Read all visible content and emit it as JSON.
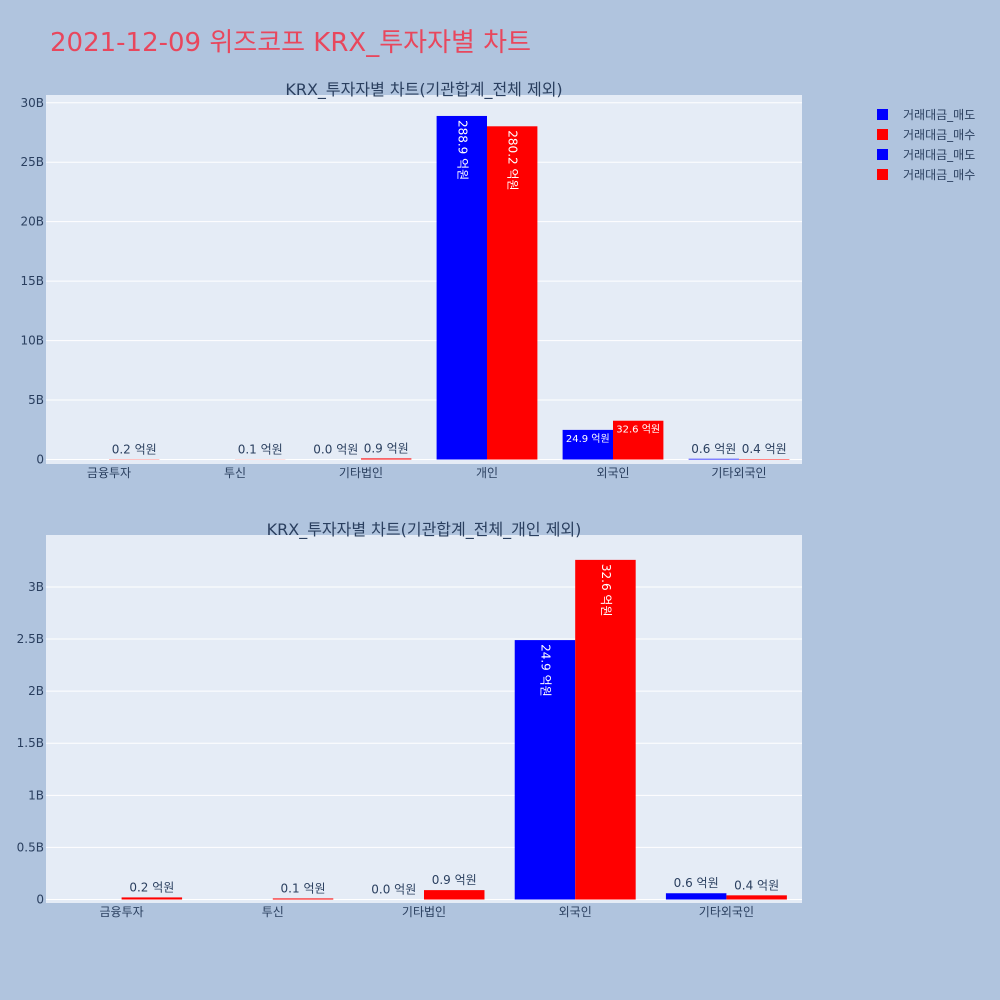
{
  "page_title": "2021-12-09 위즈코프 KRX_투자자별 차트",
  "colors": {
    "sell": "#0000ff",
    "buy": "#ff0000",
    "plot_bg": "#e5ecf6",
    "page_bg": "#b0c4de"
  },
  "legend": [
    {
      "label": "거래대금_매도",
      "color": "#0000ff"
    },
    {
      "label": "거래대금_매수",
      "color": "#ff0000"
    },
    {
      "label": "거래대금_매도",
      "color": "#0000ff"
    },
    {
      "label": "거래대금_매수",
      "color": "#ff0000"
    }
  ],
  "chart_data": [
    {
      "type": "bar",
      "title": "KRX_투자자별 차트(기관합계_전체 제외)",
      "categories": [
        "금융투자",
        "투신",
        "기타법인",
        "개인",
        "외국인",
        "기타외국인"
      ],
      "series": [
        {
          "name": "거래대금_매도",
          "values": [
            0,
            0,
            0,
            28890000000,
            2490000000,
            60000000
          ],
          "labels": [
            "",
            "",
            "0.0 억원",
            "288.9 억원",
            "24.9 억원",
            "0.6 억원"
          ]
        },
        {
          "name": "거래대금_매수",
          "values": [
            20000000,
            10000000,
            90000000,
            28020000000,
            3260000000,
            40000000
          ],
          "labels": [
            "0.2 억원",
            "0.1 억원",
            "0.9 억원",
            "280.2 억원",
            "32.6 억원",
            "0.4 억원"
          ]
        }
      ],
      "yticks": [
        0,
        5000000000,
        10000000000,
        15000000000,
        20000000000,
        25000000000,
        30000000000
      ],
      "ytick_labels": [
        "0",
        "5B",
        "10B",
        "15B",
        "20B",
        "25B",
        "30B"
      ],
      "ylim": [
        0,
        30400000000
      ],
      "grid": true
    },
    {
      "type": "bar",
      "title": "KRX_투자자별 차트(기관합계_전체_개인 제외)",
      "categories": [
        "금융투자",
        "투신",
        "기타법인",
        "외국인",
        "기타외국인"
      ],
      "series": [
        {
          "name": "거래대금_매도",
          "values": [
            0,
            0,
            0,
            2490000000,
            60000000
          ],
          "labels": [
            "",
            "",
            "0.0 억원",
            "24.9 억원",
            "0.6 억원"
          ]
        },
        {
          "name": "거래대금_매수",
          "values": [
            20000000,
            10000000,
            90000000,
            3260000000,
            40000000
          ],
          "labels": [
            "0.2 억원",
            "0.1 억원",
            "0.9 억원",
            "32.6 억원",
            "0.4 억원"
          ]
        }
      ],
      "yticks": [
        0,
        500000000,
        1000000000,
        1500000000,
        2000000000,
        2500000000,
        3000000000
      ],
      "ytick_labels": [
        "0",
        "0.5B",
        "1B",
        "1.5B",
        "2B",
        "2.5B",
        "3B"
      ],
      "ylim": [
        0,
        3470000000
      ],
      "grid": true
    }
  ]
}
